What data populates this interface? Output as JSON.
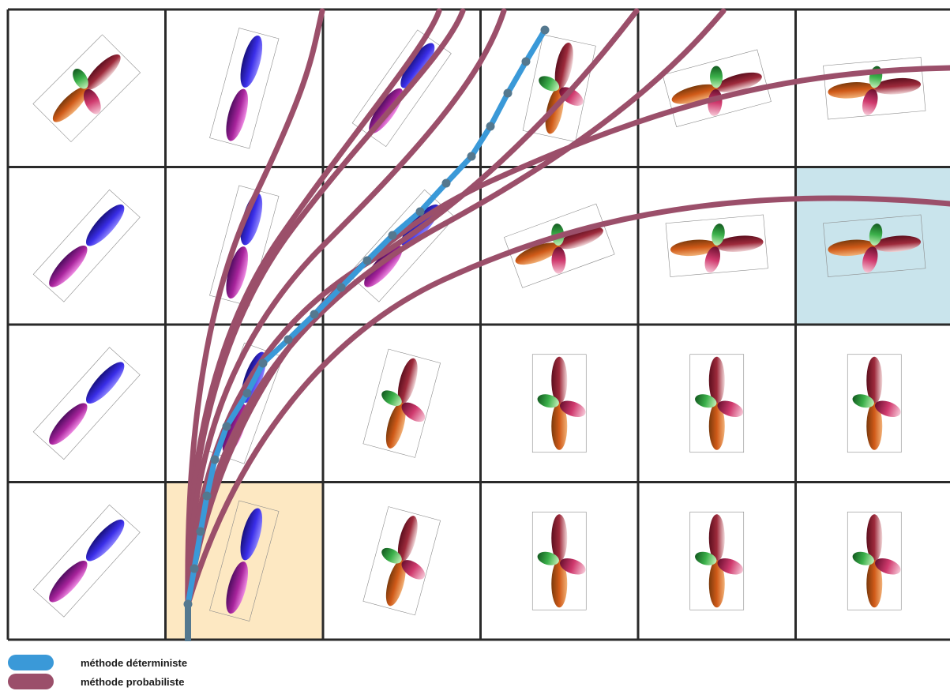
{
  "legend": {
    "deterministic": {
      "label": "méthode déterministe",
      "color": "#3a99d8"
    },
    "probabilistic": {
      "label": "méthode probabiliste",
      "color": "#9b4f6a"
    }
  },
  "grid": {
    "columns": 6,
    "rows": 4,
    "seed_cell": {
      "row": 3,
      "col": 1,
      "color": "#fde8c2"
    },
    "target_cell": {
      "row": 1,
      "col": 5,
      "color": "#c9e4ec"
    }
  },
  "glyphs": [
    {
      "cell": [
        0,
        0
      ],
      "type": "cross",
      "angle": 45
    },
    {
      "cell": [
        0,
        1
      ],
      "type": "stick",
      "angle": 15
    },
    {
      "cell": [
        0,
        2
      ],
      "type": "stick",
      "angle": 35
    },
    {
      "cell": [
        0,
        3
      ],
      "type": "cross",
      "angle": 12
    },
    {
      "cell": [
        0,
        4
      ],
      "type": "cross",
      "angle": 75
    },
    {
      "cell": [
        0,
        5
      ],
      "type": "cross",
      "angle": 85
    },
    {
      "cell": [
        1,
        0
      ],
      "type": "stick",
      "angle": 42
    },
    {
      "cell": [
        1,
        1
      ],
      "type": "stick",
      "angle": 15
    },
    {
      "cell": [
        1,
        2
      ],
      "type": "stick",
      "angle": 42
    },
    {
      "cell": [
        1,
        3
      ],
      "type": "cross",
      "angle": 70
    },
    {
      "cell": [
        1,
        4
      ],
      "type": "cross",
      "angle": 85
    },
    {
      "cell": [
        1,
        5
      ],
      "type": "cross",
      "angle": 85
    },
    {
      "cell": [
        2,
        0
      ],
      "type": "stick",
      "angle": 42
    },
    {
      "cell": [
        2,
        1
      ],
      "type": "stick",
      "angle": 20
    },
    {
      "cell": [
        2,
        2
      ],
      "type": "cross",
      "angle": 15
    },
    {
      "cell": [
        2,
        3
      ],
      "type": "cross",
      "angle": 0
    },
    {
      "cell": [
        2,
        4
      ],
      "type": "cross",
      "angle": 0
    },
    {
      "cell": [
        2,
        5
      ],
      "type": "cross",
      "angle": 0
    },
    {
      "cell": [
        3,
        0
      ],
      "type": "stick",
      "angle": 42
    },
    {
      "cell": [
        3,
        1
      ],
      "type": "stick",
      "angle": 15
    },
    {
      "cell": [
        3,
        2
      ],
      "type": "cross",
      "angle": 15
    },
    {
      "cell": [
        3,
        3
      ],
      "type": "cross",
      "angle": 0
    },
    {
      "cell": [
        3,
        4
      ],
      "type": "cross",
      "angle": 0
    },
    {
      "cell": [
        3,
        5
      ],
      "type": "cross",
      "angle": 0
    }
  ]
}
